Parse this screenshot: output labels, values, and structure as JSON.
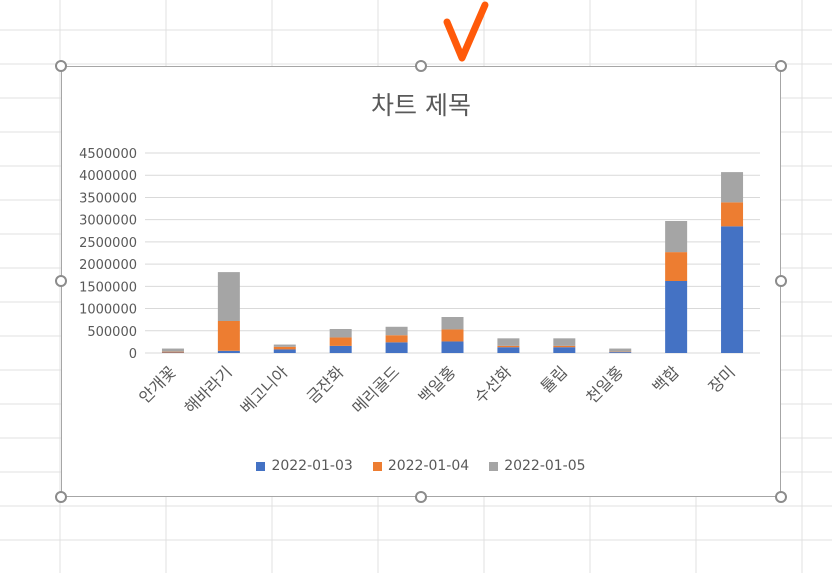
{
  "chart_data": {
    "type": "bar",
    "stacked": true,
    "title": "차트 제목",
    "categories": [
      "안개꽃",
      "해바라기",
      "베고니아",
      "금잔화",
      "메리골드",
      "백일홍",
      "수선화",
      "튤립",
      "천일홍",
      "백합",
      "장미"
    ],
    "series": [
      {
        "name": "2022-01-03",
        "color": "#4472c4",
        "values": [
          10000,
          50000,
          80000,
          160000,
          240000,
          260000,
          130000,
          130000,
          20000,
          1620000,
          2850000
        ]
      },
      {
        "name": "2022-01-04",
        "color": "#ed7d31",
        "values": [
          20000,
          670000,
          60000,
          190000,
          160000,
          270000,
          30000,
          30000,
          10000,
          650000,
          540000
        ]
      },
      {
        "name": "2022-01-05",
        "color": "#a5a5a5",
        "values": [
          70000,
          1100000,
          50000,
          190000,
          190000,
          280000,
          170000,
          170000,
          70000,
          700000,
          680000
        ]
      }
    ],
    "y_ticks": [
      "0",
      "500000",
      "1000000",
      "1500000",
      "2000000",
      "2500000",
      "3000000",
      "3500000",
      "4000000",
      "4500000"
    ],
    "ylim": [
      0,
      4500000
    ],
    "grid": true,
    "legend_position": "bottom"
  }
}
